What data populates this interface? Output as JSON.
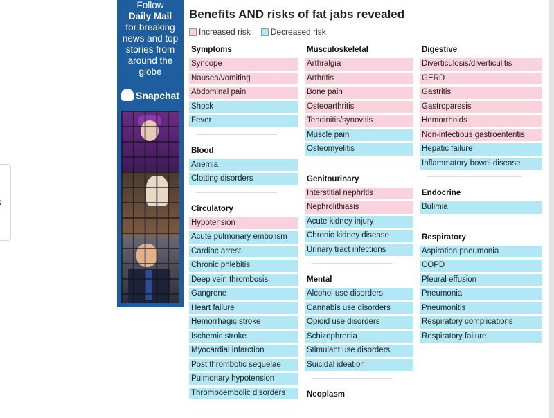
{
  "ad": {
    "line1": "Follow",
    "brand": "Daily Mail",
    "line3": "for breaking",
    "line4": "news and top",
    "line5": "stories from",
    "line6": "around the",
    "line7": "globe",
    "snap": "Snapchat"
  },
  "title": "Benefits AND risks of fat jabs revealed",
  "legend": {
    "increased": "Increased risk",
    "decreased": "Decreased risk",
    "increased_color": "#fad2dd",
    "decreased_color": "#b2e7f5"
  },
  "columns": [
    {
      "sections": [
        {
          "title": "Symptoms",
          "items": [
            {
              "label": "Syncope",
              "risk": "inc"
            },
            {
              "label": "Nausea/vomiting",
              "risk": "inc"
            },
            {
              "label": "Abdominal pain",
              "risk": "inc"
            },
            {
              "label": "Shock",
              "risk": "dec"
            },
            {
              "label": "Fever",
              "risk": "dec"
            }
          ]
        },
        {
          "title": "Blood",
          "items": [
            {
              "label": "Anemia",
              "risk": "dec"
            },
            {
              "label": "Clotting disorders",
              "risk": "dec"
            }
          ]
        },
        {
          "title": "Circulatory",
          "items": [
            {
              "label": "Hypotension",
              "risk": "inc"
            },
            {
              "label": "Acute pulmonary embolism",
              "risk": "dec"
            },
            {
              "label": "Cardiac arrest",
              "risk": "dec"
            },
            {
              "label": "Chronic phlebitis",
              "risk": "dec"
            },
            {
              "label": "Deep vein thrombosis",
              "risk": "dec"
            },
            {
              "label": "Gangrene",
              "risk": "dec"
            },
            {
              "label": "Heart failure",
              "risk": "dec"
            },
            {
              "label": "Hemorrhagic stroke",
              "risk": "dec"
            },
            {
              "label": "Ischemic stroke",
              "risk": "dec"
            },
            {
              "label": "Myocardial infarction",
              "risk": "dec"
            },
            {
              "label": "Post thrombotic sequelae",
              "risk": "dec"
            },
            {
              "label": "Pulmonary hypotension",
              "risk": "dec"
            },
            {
              "label": "Thromboembolic disorders",
              "risk": "dec"
            }
          ]
        }
      ]
    },
    {
      "sections": [
        {
          "title": "Musculoskeletal",
          "items": [
            {
              "label": "Arthralgia",
              "risk": "inc"
            },
            {
              "label": "Arthritis",
              "risk": "inc"
            },
            {
              "label": "Bone pain",
              "risk": "inc"
            },
            {
              "label": "Osteoarthritis",
              "risk": "inc"
            },
            {
              "label": "Tendinitis/synovitis",
              "risk": "inc"
            },
            {
              "label": "Muscle pain",
              "risk": "dec"
            },
            {
              "label": "Osteomyelitis",
              "risk": "dec"
            }
          ]
        },
        {
          "title": "Genitourinary",
          "items": [
            {
              "label": "Interstitial nephritis",
              "risk": "inc"
            },
            {
              "label": "Nephrolithiasis",
              "risk": "inc"
            },
            {
              "label": "Acute kidney injury",
              "risk": "dec"
            },
            {
              "label": "Chronic kidney disease",
              "risk": "dec"
            },
            {
              "label": "Urinary tract infections",
              "risk": "dec"
            }
          ]
        },
        {
          "title": "Mental",
          "items": [
            {
              "label": "Alcohol use disorders",
              "risk": "dec"
            },
            {
              "label": "Cannabis use disorders",
              "risk": "dec"
            },
            {
              "label": "Opioid use disorders",
              "risk": "dec"
            },
            {
              "label": "Schizophrenia",
              "risk": "dec"
            },
            {
              "label": "Stimulant use disorders",
              "risk": "dec"
            },
            {
              "label": "Suicidal ideation",
              "risk": "dec"
            }
          ]
        },
        {
          "title": "Neoplasm",
          "items": []
        }
      ]
    },
    {
      "sections": [
        {
          "title": "Digestive",
          "items": [
            {
              "label": "Diverticulosis/diverticulitis",
              "risk": "inc"
            },
            {
              "label": "GERD",
              "risk": "inc"
            },
            {
              "label": "Gastritis",
              "risk": "inc"
            },
            {
              "label": "Gastroparesis",
              "risk": "inc"
            },
            {
              "label": "Hemorrhoids",
              "risk": "inc"
            },
            {
              "label": "Non-infectious gastroenteritis",
              "risk": "inc"
            },
            {
              "label": "Hepatic failure",
              "risk": "dec"
            },
            {
              "label": "Inflammatory bowel disease",
              "risk": "dec"
            }
          ]
        },
        {
          "title": "Endocrine",
          "items": [
            {
              "label": "Bulimia",
              "risk": "dec"
            }
          ]
        },
        {
          "title": "Respiratory",
          "items": [
            {
              "label": "Aspiration pneumonia",
              "risk": "dec"
            },
            {
              "label": "COPD",
              "risk": "dec"
            },
            {
              "label": "Pleural effusion",
              "risk": "dec"
            },
            {
              "label": "Pneumonia",
              "risk": "dec"
            },
            {
              "label": "Pneumonitis",
              "risk": "dec"
            },
            {
              "label": "Respiratory complications",
              "risk": "dec"
            },
            {
              "label": "Respiratory failure",
              "risk": "dec"
            }
          ]
        }
      ]
    }
  ]
}
